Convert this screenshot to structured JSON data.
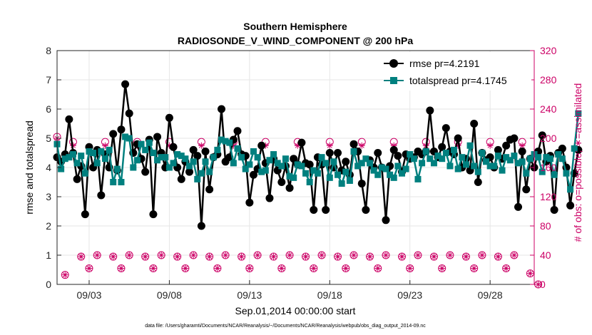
{
  "chart_data": {
    "type": "line",
    "title": "Southern Hemisphere",
    "subtitle": "RADIOSONDE_V_WIND_COMPONENT @ 200 hPa",
    "xlabel": "Sep.01,2014 00:00:00 start",
    "ylabel": "rmse and totalspread",
    "y2label": "# of obs: o=possible; ∗=assimilated",
    "footnote": "data file: /Users/gharamti/Documents/NCAR/Reanalysis/~/Documents/NCAR/Reanalysis/webpub/obs_diag_output_2014-09.nc",
    "xlim": [
      1.0,
      30.75
    ],
    "ylim": [
      0,
      8
    ],
    "y2lim": [
      0,
      320
    ],
    "x_ticks": [
      {
        "x": 3,
        "label": "09/03"
      },
      {
        "x": 8,
        "label": "09/08"
      },
      {
        "x": 13,
        "label": "09/13"
      },
      {
        "x": 18,
        "label": "09/18"
      },
      {
        "x": 23,
        "label": "09/23"
      },
      {
        "x": 28,
        "label": "09/28"
      }
    ],
    "y_ticks": [
      0,
      1,
      2,
      3,
      4,
      5,
      6,
      7,
      8
    ],
    "y2_ticks": [
      0,
      40,
      80,
      120,
      160,
      200,
      240,
      280,
      320
    ],
    "grid": true,
    "legend_position": "top-right",
    "colors": {
      "rmse": "#000000",
      "totalspread": "#00807f",
      "obs": "#cc0066",
      "grid": "#e6e6e6",
      "axis": "#262626"
    },
    "x_start": 1.0,
    "x_step": 0.25,
    "series": [
      {
        "name": "rmse pr=4.2191",
        "values": [
          4.35,
          4.2,
          4.45,
          5.65,
          4.5,
          3.6,
          4.05,
          2.4,
          4.7,
          4.0,
          4.6,
          3.05,
          4.45,
          4.0,
          5.15,
          3.9,
          5.3,
          6.85,
          5.85,
          4.5,
          4.8,
          4.3,
          3.85,
          4.95,
          2.4,
          5.05,
          4.5,
          4.0,
          5.7,
          4.7,
          4.0,
          3.6,
          4.2,
          3.85,
          4.6,
          4.4,
          2.0,
          4.55,
          3.25,
          4.35,
          4.45,
          6.0,
          4.2,
          4.35,
          4.95,
          5.25,
          4.45,
          4.4,
          2.8,
          3.75,
          3.95,
          4.75,
          4.15,
          2.95,
          4.3,
          3.9,
          3.5,
          4.05,
          3.3,
          4.3,
          4.1,
          4.85,
          4.15,
          4.1,
          2.55,
          4.35,
          4.1,
          2.55,
          4.5,
          4.0,
          4.5,
          3.9,
          4.2,
          3.75,
          4.8,
          4.55,
          3.45,
          2.55,
          4.25,
          4.0,
          4.5,
          4.0,
          2.2,
          4.05,
          4.6,
          4.4,
          3.85,
          4.45,
          4.3,
          4.35,
          4.55,
          4.45,
          4.55,
          5.95,
          4.55,
          4.35,
          4.7,
          5.35,
          4.55,
          4.45,
          5.0,
          4.0,
          4.3,
          3.9,
          5.5,
          3.5,
          4.5,
          4.25,
          4.35,
          4.0,
          4.6,
          4.3,
          4.75,
          4.95,
          5.0,
          2.65,
          4.55,
          3.25,
          4.3,
          4.0,
          4.55,
          5.1,
          4.2,
          4.4,
          2.55,
          4.5,
          4.65,
          4.0,
          2.7,
          3.8,
          4.6
        ],
        "color": "#000000",
        "marker": "circle"
      },
      {
        "name": "totalspread pr=4.1745",
        "values": [
          4.8,
          3.95,
          4.3,
          4.35,
          4.45,
          4.15,
          4.4,
          3.8,
          4.55,
          4.5,
          4.15,
          4.55,
          4.3,
          4.6,
          3.5,
          3.95,
          3.5,
          5.05,
          5.0,
          4.0,
          4.25,
          4.8,
          4.6,
          4.85,
          4.5,
          4.25,
          4.35,
          4.35,
          4.0,
          4.15,
          4.45,
          4.4,
          4.3,
          4.05,
          4.2,
          3.6,
          3.8,
          4.2,
          3.85,
          4.35,
          4.6,
          4.95,
          4.9,
          4.85,
          4.15,
          4.65,
          4.35,
          3.95,
          4.1,
          4.55,
          4.35,
          3.85,
          3.9,
          4.25,
          4.45,
          4.15,
          4.05,
          4.3,
          3.7,
          3.65,
          4.1,
          4.05,
          3.8,
          3.5,
          3.9,
          3.8,
          4.35,
          4.15,
          3.65,
          4.2,
          3.75,
          3.45,
          3.85,
          3.55,
          4.55,
          4.05,
          4.15,
          4.3,
          4.15,
          3.9,
          3.75,
          4.0,
          3.95,
          3.75,
          3.65,
          4.05,
          3.8,
          3.95,
          4.45,
          4.3,
          3.6,
          4.15,
          4.55,
          4.3,
          4.15,
          4.4,
          4.3,
          4.5,
          4.05,
          4.6,
          3.95,
          4.35,
          4.1,
          4.75,
          4.05,
          3.85,
          4.5,
          4.2,
          4.05,
          4.05,
          4.4,
          3.9,
          4.35,
          4.25,
          4.4,
          4.15,
          4.2,
          3.8,
          4.3,
          4.45,
          4.35,
          3.85,
          4.35,
          4.3,
          3.75,
          4.45,
          4.3,
          3.8,
          3.25,
          4.65,
          5.85
        ],
        "color": "#00807f",
        "marker": "square"
      }
    ],
    "obs_possible": {
      "x_start": 1.0,
      "x_step": 0.5,
      "values": [
        202,
        13,
        195,
        38,
        22,
        40,
        195,
        38,
        22,
        40,
        195,
        38,
        22,
        40,
        195,
        38,
        22,
        40,
        195,
        38,
        22,
        40,
        195,
        38,
        22,
        40,
        195,
        38,
        22,
        40,
        195,
        38,
        22,
        40,
        195,
        38,
        22,
        40,
        195,
        38,
        22,
        40,
        195,
        38,
        22,
        40,
        195,
        38,
        22,
        40,
        195,
        38,
        22,
        40,
        195,
        38,
        22,
        40,
        195,
        15,
        0
      ],
      "color": "#cc0066",
      "marker": "open-circle"
    },
    "obs_assimilated": {
      "x_start": 1.0,
      "x_step": 0.5,
      "values": [
        200,
        13,
        190,
        38,
        22,
        40,
        190,
        38,
        22,
        40,
        190,
        38,
        22,
        40,
        190,
        38,
        22,
        40,
        190,
        38,
        22,
        40,
        190,
        38,
        22,
        40,
        190,
        38,
        22,
        40,
        190,
        38,
        22,
        40,
        190,
        38,
        22,
        40,
        190,
        38,
        22,
        40,
        190,
        38,
        22,
        40,
        190,
        38,
        22,
        40,
        190,
        38,
        22,
        40,
        190,
        38,
        22,
        40,
        190,
        15,
        0
      ],
      "color": "#cc0066",
      "marker": "asterisk"
    }
  }
}
